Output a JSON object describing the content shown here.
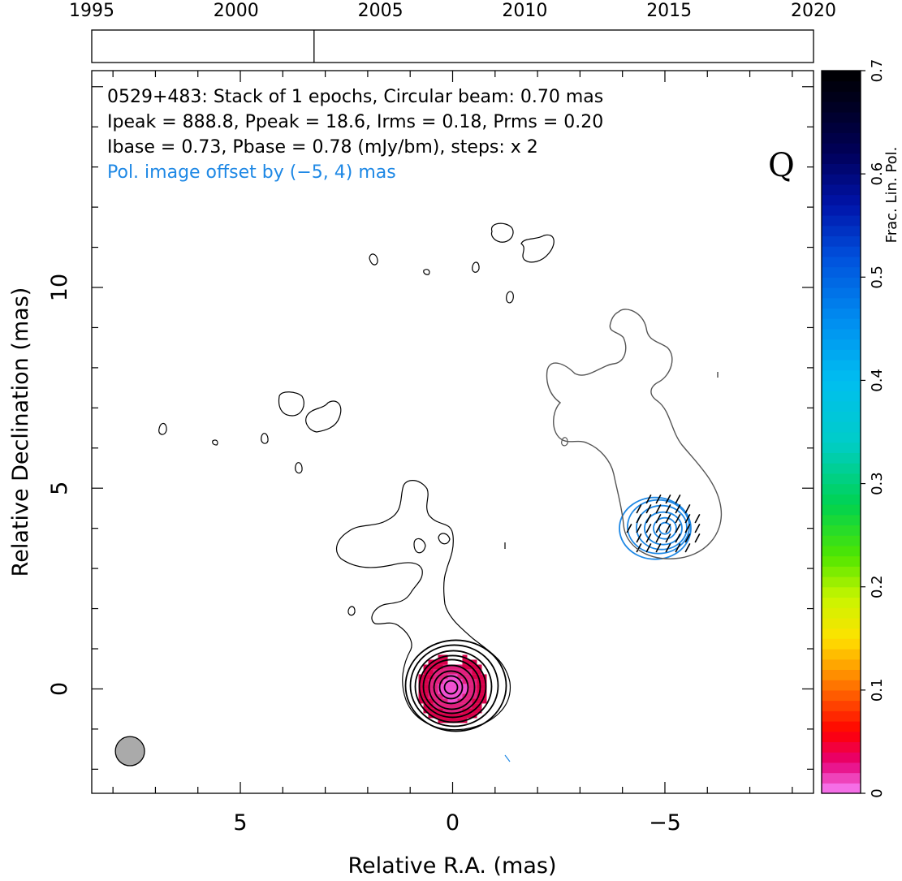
{
  "timeline": {
    "year_labels": [
      "1995",
      "2000",
      "2005",
      "2010",
      "2015",
      "2020"
    ],
    "year_values": [
      1995,
      2000,
      2005,
      2010,
      2015,
      2020
    ],
    "range": [
      1995,
      2020
    ],
    "epochs": [
      2002.7
    ]
  },
  "chart_data": {
    "type": "contour",
    "source": "0529+483",
    "xlabel": "Relative R.A. (mas)",
    "ylabel": "Relative Declination (mas)",
    "xlim": [
      8.5,
      -8.5
    ],
    "ylim": [
      -2.6,
      15.4
    ],
    "x_ticks": [
      5,
      0,
      -5
    ],
    "x_tick_labels": [
      "5",
      "0",
      "−5"
    ],
    "y_ticks": [
      0,
      5,
      10
    ],
    "y_tick_labels": [
      "0",
      "5",
      "10"
    ],
    "info_lines": [
      "0529+483: Stack of 1 epochs, Circular beam: 0.70 mas",
      "Ipeak = 888.8, Ppeak = 18.6, Irms = 0.18, Prms = 0.20",
      "Ibase = 0.73, Pbase = 0.78 (mJy/bm), steps: x 2"
    ],
    "offset_note": "Pol. image offset by (−5, 4) mas",
    "stokes_label": "Q",
    "beam": {
      "x": 7.6,
      "y": -1.55,
      "diameter_mas": 0.7
    },
    "core": {
      "x": 0,
      "y": 0
    },
    "polarization_offset": {
      "x": -5,
      "y": 4
    },
    "ipeak": 888.8,
    "ppeak": 18.6,
    "irms": 0.18,
    "prms": 0.2,
    "ibase": 0.73,
    "pbase": 0.78,
    "step_factor": 2,
    "colorbar": {
      "label": "Frac. Lin. Pol.",
      "range": [
        0,
        0.7
      ],
      "ticks": [
        0,
        0.1,
        0.2,
        0.3,
        0.4,
        0.5,
        0.6,
        0.7
      ],
      "tick_labels": [
        "0",
        "0.1",
        "0.2",
        "0.3",
        "0.4",
        "0.5",
        "0.6",
        "0.7"
      ]
    },
    "colors": {
      "contours": "#000000",
      "pol_contours": "#1e88e5",
      "offset_contour": "#555555",
      "beam_fill": "#aaaaaa",
      "offset_note": "#1e88e5"
    }
  }
}
